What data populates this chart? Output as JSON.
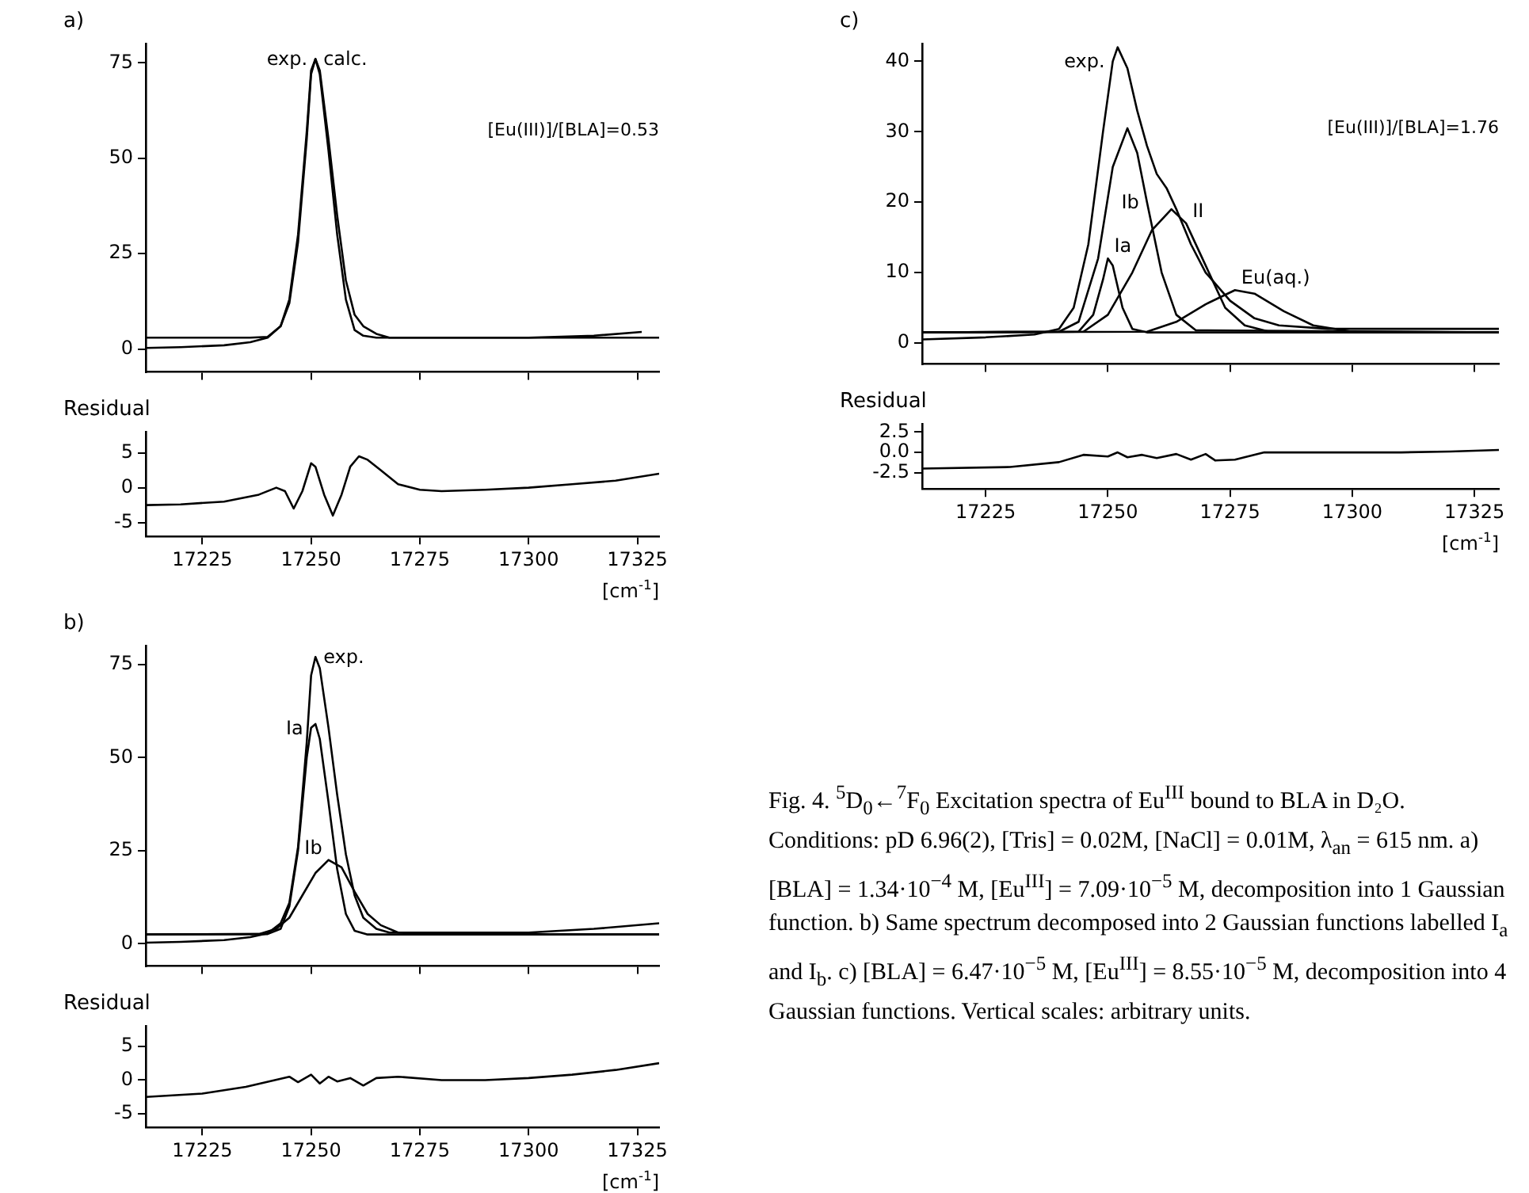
{
  "chart_data": [
    {
      "type": "line",
      "title": "a)",
      "annotations": [
        "[Eu(III)]/[BLA]=0.53"
      ],
      "xlim": [
        17212,
        17330
      ],
      "xticks": [
        17225,
        17250,
        17275,
        17300,
        17325
      ],
      "ylim": [
        -6,
        80
      ],
      "yticks": [
        0,
        25,
        50,
        75
      ],
      "tick_labels": "y",
      "grid": false,
      "series": [
        {
          "name": "calc.",
          "color": "#000000",
          "x": [
            17212,
            17220,
            17230,
            17236,
            17240,
            17243,
            17245,
            17247,
            17249,
            17250,
            17251,
            17252,
            17254,
            17256,
            17258,
            17260,
            17262,
            17265,
            17268,
            17272,
            17280,
            17300,
            17315,
            17330
          ],
          "values": [
            3,
            3,
            3,
            3,
            3.2,
            6,
            13,
            30,
            57,
            73,
            76,
            72,
            52,
            30,
            13,
            5,
            3.5,
            3,
            3,
            3,
            3,
            3,
            3,
            3
          ]
        },
        {
          "name": "exp.",
          "color": "#000000",
          "x": [
            17212,
            17220,
            17230,
            17236,
            17240,
            17243,
            17245,
            17247,
            17249,
            17250,
            17251,
            17252,
            17254,
            17256,
            17258,
            17260,
            17262,
            17265,
            17268,
            17272,
            17280,
            17300,
            17315,
            17326
          ],
          "values": [
            0.3,
            0.5,
            1,
            1.8,
            3,
            6,
            12,
            28,
            55,
            72,
            76,
            73,
            55,
            35,
            18,
            9,
            6,
            4,
            3,
            3,
            3,
            3,
            3.5,
            4.5
          ]
        }
      ]
    },
    {
      "type": "line",
      "title": "Residual",
      "xlabel": "[cm$^{-1}$]",
      "xlim": [
        17212,
        17330
      ],
      "xticks": [
        17225,
        17250,
        17275,
        17300,
        17325
      ],
      "ylim": [
        -7,
        8
      ],
      "yticks": [
        -5,
        0,
        5
      ],
      "grid": false,
      "series": [
        {
          "color": "#000000",
          "x": [
            17212,
            17220,
            17230,
            17238,
            17242,
            17244,
            17246,
            17248,
            17250,
            17251,
            17253,
            17255,
            17257,
            17259,
            17261,
            17263,
            17266,
            17270,
            17275,
            17280,
            17290,
            17300,
            17310,
            17320,
            17330
          ],
          "values": [
            -2.5,
            -2.4,
            -2,
            -1,
            0,
            -0.5,
            -3,
            -0.5,
            3.5,
            3,
            -1,
            -4,
            -1,
            3,
            4.5,
            4,
            2.5,
            0.5,
            -0.3,
            -0.5,
            -0.3,
            0,
            0.5,
            1,
            2
          ]
        }
      ]
    },
    {
      "type": "line",
      "title": "b)",
      "xlim": [
        17212,
        17330
      ],
      "xticks": [
        17225,
        17250,
        17275,
        17300,
        17325
      ],
      "ylim": [
        -6,
        80
      ],
      "yticks": [
        0,
        25,
        50,
        75
      ],
      "tick_labels": "y",
      "grid": false,
      "series": [
        {
          "name": "exp.",
          "color": "#000000",
          "x": [
            17212,
            17220,
            17230,
            17236,
            17240,
            17243,
            17245,
            17247,
            17249,
            17250,
            17251,
            17252,
            17254,
            17256,
            17258,
            17260,
            17262,
            17265,
            17268,
            17272,
            17280,
            17300,
            17315,
            17330
          ],
          "values": [
            0.3,
            0.5,
            1,
            1.8,
            2.8,
            5.5,
            11,
            26,
            54,
            72,
            77,
            74,
            58,
            40,
            24,
            13,
            7,
            4,
            3,
            3,
            3,
            3,
            4,
            5.5
          ]
        },
        {
          "name": "Ia",
          "color": "#000000",
          "x": [
            17212,
            17240,
            17243,
            17245,
            17247,
            17249,
            17250,
            17251,
            17252,
            17254,
            17256,
            17258,
            17260,
            17263,
            17330
          ],
          "values": [
            2.5,
            2.6,
            4,
            10,
            25,
            50,
            58,
            59,
            55,
            38,
            20,
            8,
            3.5,
            2.5,
            2.5
          ]
        },
        {
          "name": "Ib",
          "color": "#000000",
          "x": [
            17212,
            17238,
            17242,
            17245,
            17248,
            17251,
            17254,
            17257,
            17260,
            17263,
            17266,
            17270,
            17275,
            17330
          ],
          "values": [
            2.5,
            2.6,
            4,
            7,
            13,
            19,
            22.5,
            20.5,
            14,
            8,
            5,
            3,
            2.6,
            2.5
          ]
        }
      ]
    },
    {
      "type": "line",
      "title": "Residual",
      "xlabel": "[cm$^{-1}$]",
      "xlim": [
        17212,
        17330
      ],
      "xticks": [
        17225,
        17250,
        17275,
        17300,
        17325
      ],
      "ylim": [
        -7,
        8
      ],
      "yticks": [
        -5,
        0,
        5
      ],
      "grid": false,
      "series": [
        {
          "color": "#000000",
          "x": [
            17212,
            17225,
            17235,
            17245,
            17247,
            17250,
            17252,
            17254,
            17256,
            17259,
            17262,
            17265,
            17270,
            17280,
            17290,
            17300,
            17310,
            17320,
            17330
          ],
          "values": [
            -2.5,
            -2,
            -1,
            0.5,
            -0.3,
            0.8,
            -0.5,
            0.5,
            -0.2,
            0.3,
            -0.8,
            0.3,
            0.5,
            0,
            0,
            0.3,
            0.8,
            1.5,
            2.5
          ]
        }
      ]
    },
    {
      "type": "line",
      "title": "c)",
      "annotations": [
        "[Eu(III)]/[BLA]=1.76"
      ],
      "xlim": [
        17212,
        17330
      ],
      "xticks": [
        17225,
        17250,
        17275,
        17300,
        17325
      ],
      "ylim": [
        -3,
        42.5
      ],
      "yticks": [
        0,
        10,
        20,
        30,
        40
      ],
      "tick_labels": "y",
      "grid": false,
      "series": [
        {
          "name": "exp.",
          "color": "#000000",
          "x": [
            17212,
            17225,
            17235,
            17240,
            17243,
            17246,
            17249,
            17251,
            17252,
            17254,
            17256,
            17258,
            17260,
            17262,
            17264,
            17267,
            17270,
            17275,
            17280,
            17285,
            17295,
            17310,
            17330
          ],
          "values": [
            0.5,
            0.8,
            1.2,
            2,
            5,
            14,
            30,
            40,
            42,
            39,
            33,
            28,
            24,
            22,
            19,
            14,
            10,
            6,
            3.5,
            2.5,
            2,
            2,
            2
          ]
        },
        {
          "name": "Ib",
          "color": "#000000",
          "x": [
            17212,
            17240,
            17244,
            17248,
            17251,
            17254,
            17256,
            17258,
            17261,
            17264,
            17268,
            17330
          ],
          "values": [
            1.5,
            1.6,
            3,
            12,
            25,
            30.5,
            27,
            20,
            10,
            4,
            1.8,
            1.5
          ]
        },
        {
          "name": "Ia",
          "color": "#000000",
          "x": [
            17212,
            17244,
            17247,
            17249,
            17250,
            17251,
            17253,
            17255,
            17258,
            17330
          ],
          "values": [
            1.5,
            1.6,
            4,
            9,
            12,
            11,
            5,
            2,
            1.5,
            1.5
          ]
        },
        {
          "name": "II",
          "color": "#000000",
          "x": [
            17212,
            17245,
            17250,
            17255,
            17259,
            17263,
            17266,
            17270,
            17274,
            17278,
            17283,
            17330
          ],
          "values": [
            1.5,
            1.6,
            4,
            10,
            16,
            19,
            17,
            11,
            5,
            2.5,
            1.6,
            1.5
          ]
        },
        {
          "name": "Eu(aq.)",
          "color": "#000000",
          "x": [
            17212,
            17258,
            17264,
            17270,
            17276,
            17280,
            17286,
            17292,
            17300,
            17330
          ],
          "values": [
            1.5,
            1.6,
            3,
            5.5,
            7.5,
            7,
            4.5,
            2.5,
            1.6,
            1.5
          ]
        }
      ]
    },
    {
      "type": "line",
      "title": "Residual",
      "xlabel": "[cm$^{-1}$]",
      "xlim": [
        17212,
        17330
      ],
      "xticks": [
        17225,
        17250,
        17275,
        17300,
        17325
      ],
      "ylim": [
        -4.5,
        3.5
      ],
      "yticks": [
        -2.5,
        {
          "value": 0,
          "label": "0.0"
        },
        2.5
      ],
      "grid": false,
      "series": [
        {
          "color": "#000000",
          "x": [
            17212,
            17230,
            17240,
            17245,
            17250,
            17252,
            17254,
            17257,
            17260,
            17264,
            17267,
            17270,
            17272,
            17276,
            17282,
            17295,
            17310,
            17320,
            17330
          ],
          "values": [
            -2,
            -1.8,
            -1.2,
            -0.3,
            -0.5,
            0,
            -0.6,
            -0.3,
            -0.7,
            -0.2,
            -0.9,
            -0.2,
            -1,
            -0.9,
            0,
            0,
            0,
            0.1,
            0.3
          ]
        }
      ]
    },
    {
      "type": "other",
      "annotations": [
        "Fig. 4. $^{5}$D$_{0}$←$^{7}$F$_{0}$ Excitation spectra of Eu$^{III}$ bound to BLA in D₂O. Conditions: pD 6.96(2), [Tris] = 0.02M, [NaCl] = 0.01M, λ$_{an}$ = 615 nm. a) [BLA] = 1.34·10$^{−4}$ M, [Eu$^{III}$] = 7.09·10$^{−5}$ M, decomposition into 1 Gaussian function. b) Same spectrum decomposed into 2 Gaussian functions labelled I$_{a}$ and I$_{b}$. c) [BLA] = 6.47·10$^{−5}$ M, [Eu$^{III}$] = 8.55·10$^{−5}$ M, decomposition into 4 Gaussian functions. Vertical scales: arbitrary units."
      ]
    }
  ]
}
